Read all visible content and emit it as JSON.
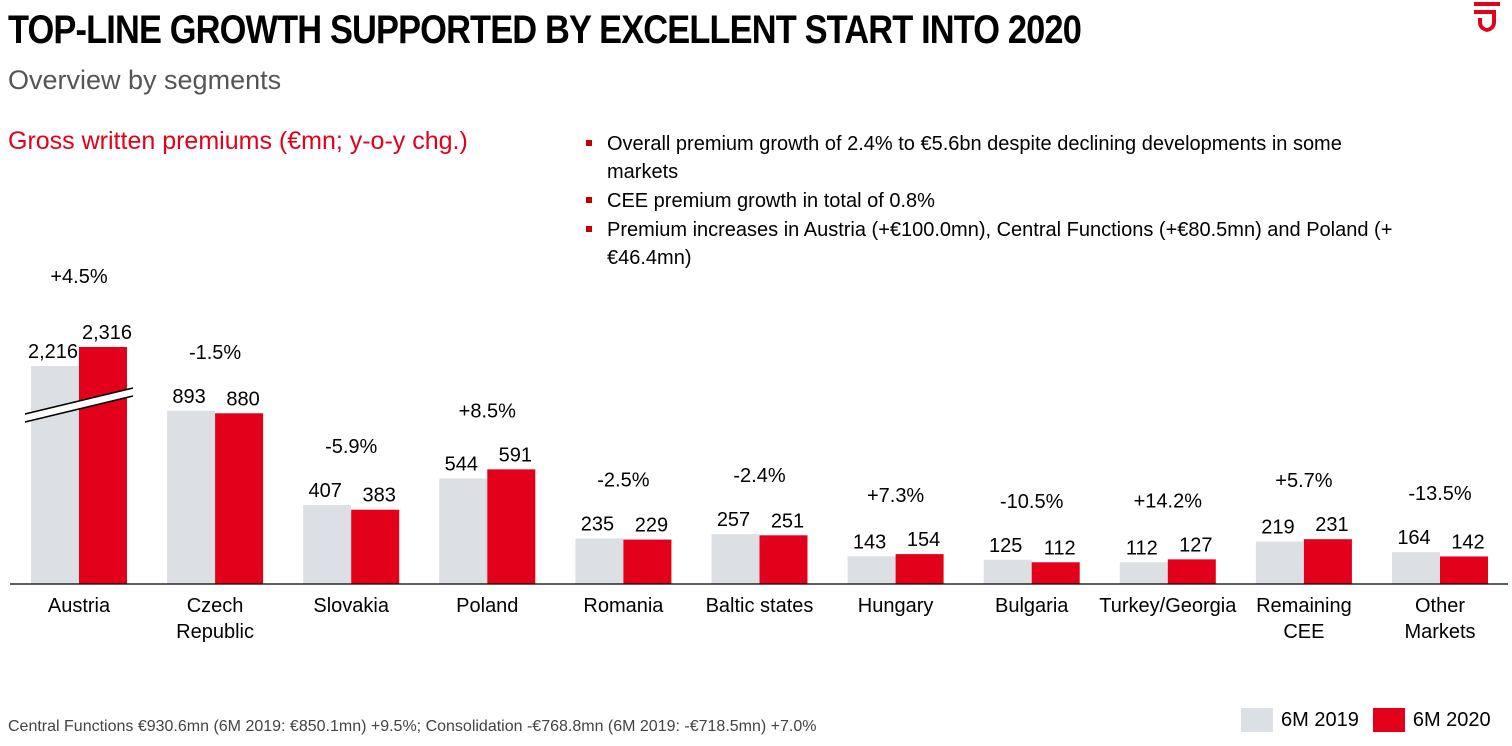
{
  "header": {
    "title": "TOP-LINE GROWTH SUPPORTED BY EXCELLENT START INTO 2020",
    "subtitle": "Overview by segments"
  },
  "bullets": [
    "Overall premium growth of 2.4% to €5.6bn despite declining developments in some markets",
    "CEE premium growth in total of 0.8%",
    "Premium increases in Austria (+€100.0mn), Central Functions (+€80.5mn) and Poland (+€46.4mn)"
  ],
  "footnote": "Central Functions €930.6mn (6M 2019: €850.1mn) +9.5%; Consolidation -€768.8mn (6M 2019: -€718.5mn) +7.0%",
  "colors": {
    "series_2019": "#dcdfe3",
    "series_2020": "#e2001a",
    "accent": "#e2001a"
  },
  "chart_data": {
    "type": "bar",
    "title": "Gross written premiums (€mn; y-o-y chg.)",
    "categories": [
      [
        "Austria"
      ],
      [
        "Czech",
        "Republic"
      ],
      [
        "Slovakia"
      ],
      [
        "Poland"
      ],
      [
        "Romania"
      ],
      [
        "Baltic states"
      ],
      [
        "Hungary"
      ],
      [
        "Bulgaria"
      ],
      [
        "Turkey/Georgia"
      ],
      [
        "Remaining",
        "CEE"
      ],
      [
        "Other",
        "Markets"
      ]
    ],
    "series": [
      {
        "name": "6M 2019",
        "values": [
          2216,
          893,
          407,
          544,
          235,
          257,
          143,
          125,
          112,
          219,
          164
        ],
        "labels": [
          "2,216",
          "893",
          "407",
          "544",
          "235",
          "257",
          "143",
          "125",
          "112",
          "219",
          "164"
        ]
      },
      {
        "name": "6M 2020",
        "values": [
          2316,
          880,
          383,
          591,
          229,
          251,
          154,
          112,
          127,
          231,
          142
        ],
        "labels": [
          "2,316",
          "880",
          "383",
          "591",
          "229",
          "251",
          "154",
          "112",
          "127",
          "231",
          "142"
        ]
      }
    ],
    "changes": [
      "+4.5%",
      "-1.5%",
      "-5.9%",
      "+8.5%",
      "-2.5%",
      "-2.4%",
      "+7.3%",
      "-10.5%",
      "+14.2%",
      "+5.7%",
      "-13.5%"
    ],
    "axis_break": "Austria",
    "grid": false,
    "legend_position": "bottom-right"
  }
}
